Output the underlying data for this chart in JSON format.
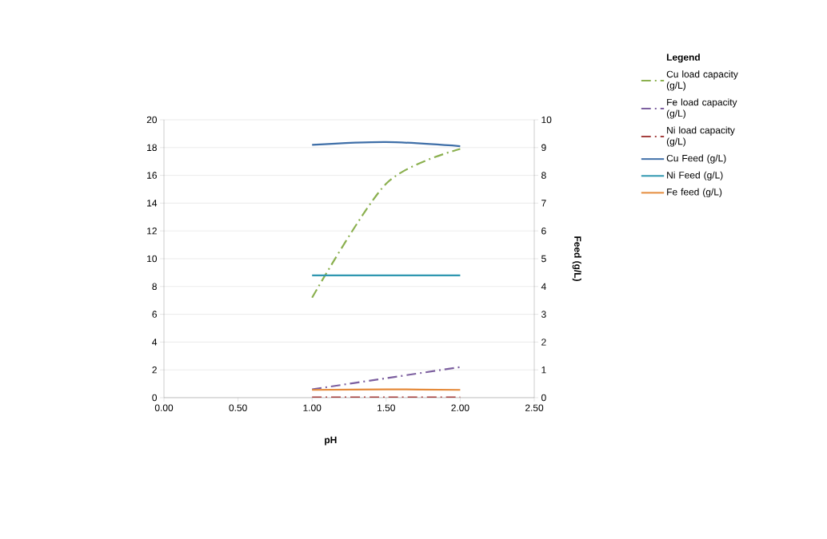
{
  "chart_data": {
    "type": "line",
    "xlabel": "pH",
    "y2label": "Feed (g/L)",
    "legend_title": "Legend",
    "x": [
      1.0,
      1.5,
      2.0
    ],
    "xlim": [
      0,
      2.5
    ],
    "xticks": [
      {
        "value": 0,
        "label": "0.00"
      },
      {
        "value": 0.5,
        "label": "0.50"
      },
      {
        "value": 1,
        "label": "1.00"
      },
      {
        "value": 1.5,
        "label": "1.50"
      },
      {
        "value": 2,
        "label": "2.00"
      },
      {
        "value": 2.5,
        "label": "2.50"
      }
    ],
    "ylim": [
      0,
      20
    ],
    "yticks": [
      0,
      2,
      4,
      6,
      8,
      10,
      12,
      14,
      16,
      18,
      20
    ],
    "y2lim": [
      0,
      10
    ],
    "y2ticks": [
      0,
      1,
      2,
      3,
      4,
      5,
      6,
      7,
      8,
      9,
      10
    ],
    "grid": "y",
    "legend": "right",
    "marker": "none",
    "series": [
      {
        "name": "Cu load capacity (g/L)",
        "color": "#8bb04f",
        "values": [
          7.2,
          15.4,
          17.9
        ],
        "line_style": "dashed"
      },
      {
        "name": "Fe load capacity (g/L)",
        "color": "#7d60a0",
        "values": [
          0.6,
          1.4,
          2.2
        ],
        "line_style": "dashed"
      },
      {
        "name": "Ni load capacity (g/L)",
        "color": "#a5413f",
        "values": [
          0.02,
          0.02,
          0.02
        ],
        "line_style": "dashed"
      },
      {
        "name": "Cu Feed (g/L)",
        "color": "#3f6fa8",
        "values": [
          9.1,
          9.2,
          9.05
        ],
        "axis": "y2",
        "line_style": "solid"
      },
      {
        "name": "Ni Feed (g/L)",
        "color": "#2f97b0",
        "values": [
          4.4,
          4.4,
          4.4
        ],
        "axis": "y2",
        "line_style": "solid"
      },
      {
        "name": "Fe feed (g/L)",
        "color": "#e58a3a",
        "values": [
          0.28,
          0.3,
          0.28
        ],
        "axis": "y2",
        "line_style": "solid"
      }
    ]
  }
}
